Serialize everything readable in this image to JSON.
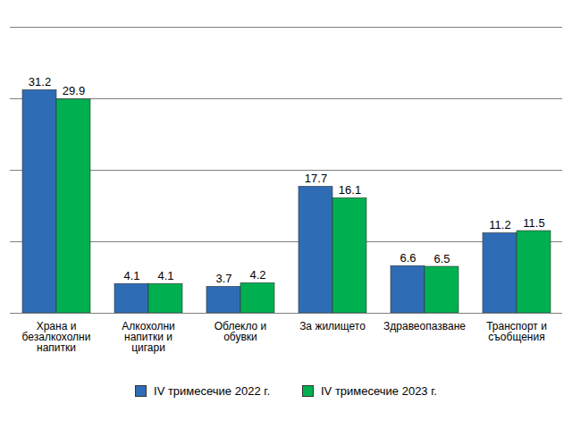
{
  "chart_data": {
    "type": "bar",
    "categories": [
      "Храна и безалкохолни напитки",
      "Алкохолни напитки и цигари",
      "Облекло и обувки",
      "За жилището",
      "Здравеопазване",
      "Транспорт и съобщения"
    ],
    "series": [
      {
        "name": "IV тримесечие 2022 г.",
        "color": "#2e6db6",
        "values": [
          31.2,
          4.1,
          3.7,
          17.7,
          6.6,
          11.2
        ]
      },
      {
        "name": "IV тримесечие 2023 г.",
        "color": "#00b050",
        "values": [
          29.9,
          4.1,
          4.2,
          16.1,
          6.5,
          11.5
        ]
      }
    ],
    "ylim": [
      0,
      40
    ],
    "yticks": [
      0,
      10,
      20,
      30,
      40
    ],
    "grid": true,
    "data_labels": true,
    "tick_labels": "x",
    "legend": "bottom"
  }
}
